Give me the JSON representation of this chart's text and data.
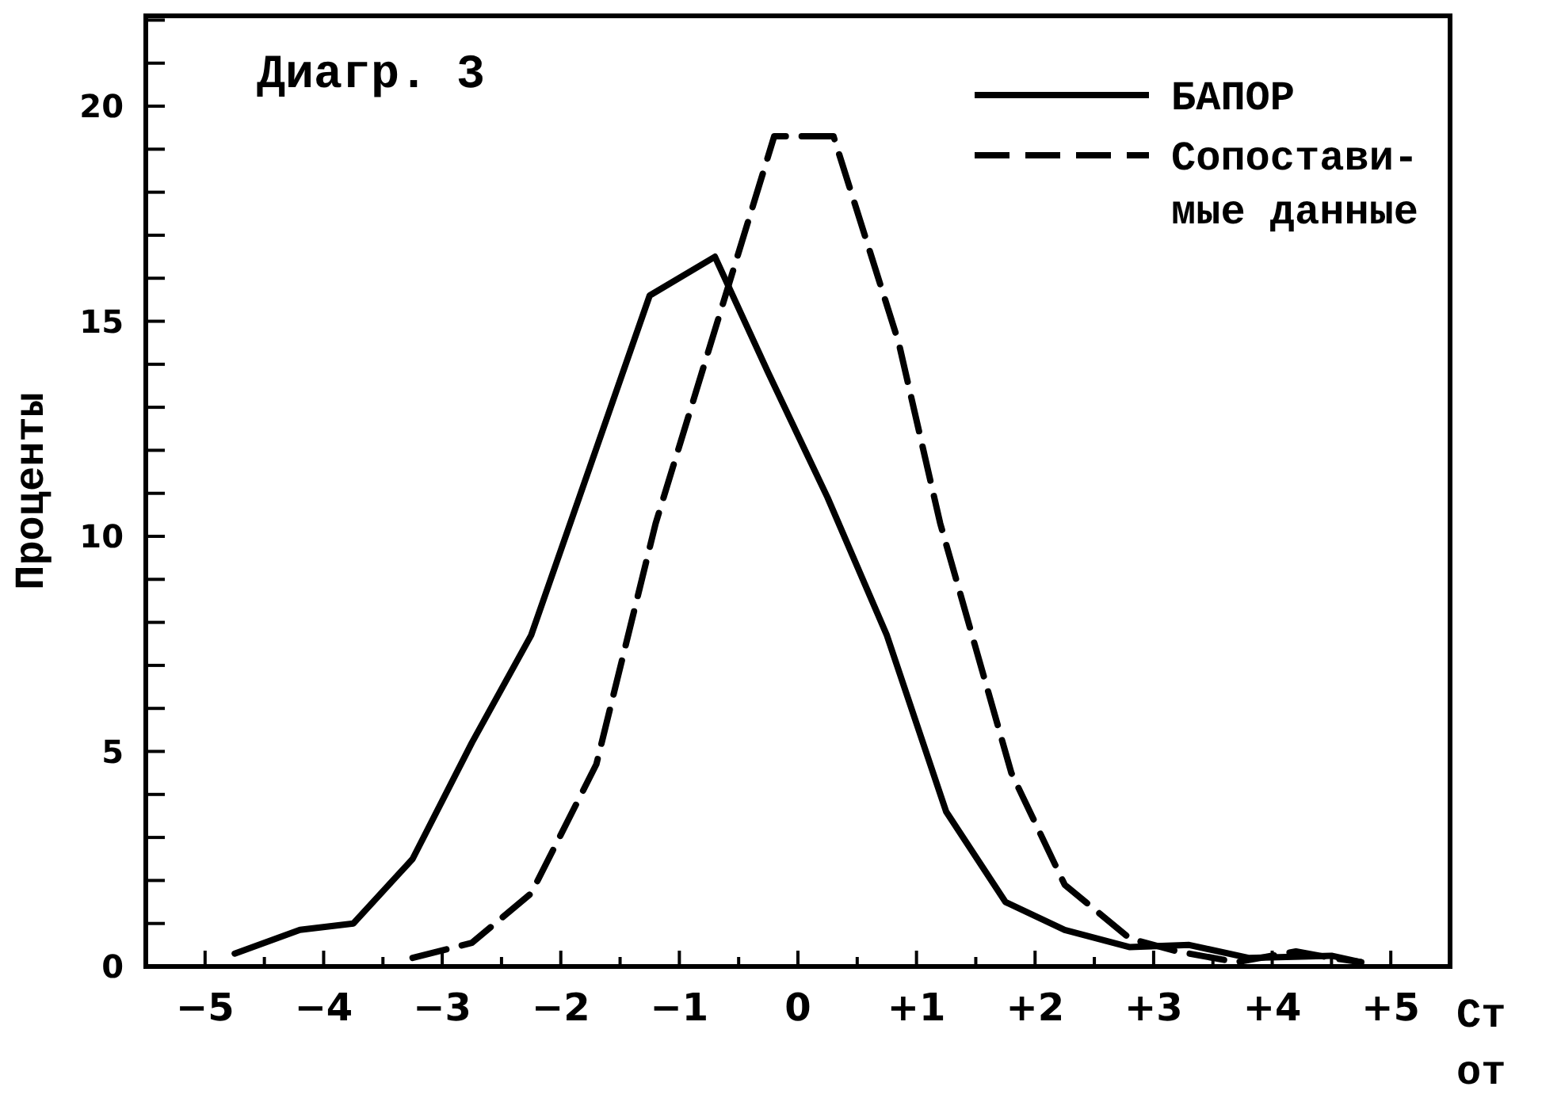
{
  "chart_data": {
    "type": "line",
    "title": "Диагр. 3",
    "ylabel": "Проценты",
    "xlabel": "Ст\nот",
    "xlim": [
      -5.5,
      5.5
    ],
    "ylim": [
      0,
      22.1
    ],
    "xticks": [
      {
        "value": -5,
        "label": "−5"
      },
      {
        "value": -4.5,
        "label": null
      },
      {
        "value": -4,
        "label": "−4"
      },
      {
        "value": -3.5,
        "label": null
      },
      {
        "value": -3,
        "label": "−3"
      },
      {
        "value": -2.5,
        "label": null
      },
      {
        "value": -2,
        "label": "−2"
      },
      {
        "value": -1.5,
        "label": null
      },
      {
        "value": -1,
        "label": "−1"
      },
      {
        "value": -0.5,
        "label": null
      },
      0,
      {
        "value": 0.5,
        "label": null
      },
      {
        "value": 1,
        "label": "+1"
      },
      {
        "value": 1.5,
        "label": null
      },
      {
        "value": 2,
        "label": "+2"
      },
      {
        "value": 2.5,
        "label": null
      },
      {
        "value": 3,
        "label": "+3"
      },
      {
        "value": 3.5,
        "label": null
      },
      {
        "value": 4,
        "label": "+4"
      },
      {
        "value": 4.5,
        "label": null
      },
      {
        "value": 5,
        "label": "+5"
      }
    ],
    "yticks": [
      0,
      {
        "value": 1,
        "label": null
      },
      {
        "value": 2,
        "label": null
      },
      {
        "value": 3,
        "label": null
      },
      {
        "value": 4,
        "label": null
      },
      5,
      {
        "value": 6,
        "label": null
      },
      {
        "value": 7,
        "label": null
      },
      {
        "value": 8,
        "label": null
      },
      {
        "value": 9,
        "label": null
      },
      10,
      {
        "value": 11,
        "label": null
      },
      {
        "value": 12,
        "label": null
      },
      {
        "value": 13,
        "label": null
      },
      {
        "value": 14,
        "label": null
      },
      15,
      {
        "value": 16,
        "label": null
      },
      {
        "value": 17,
        "label": null
      },
      {
        "value": 18,
        "label": null
      },
      {
        "value": 19,
        "label": null
      },
      20,
      {
        "value": 21,
        "label": null
      },
      {
        "value": 22,
        "label": null
      }
    ],
    "legend": "top right",
    "grid": false,
    "marker": "none",
    "series": [
      {
        "name": "БАПОР",
        "color": "#000000",
        "line_style": "solid",
        "x": [
          -4.75,
          -4.2,
          -3.75,
          -3.25,
          -2.75,
          -2.25,
          -1.25,
          -0.7,
          -0.25,
          0.25,
          0.75,
          1.25,
          1.75,
          2.25,
          2.8,
          3.3,
          3.8,
          4.5,
          4.75
        ],
        "values": [
          0.3,
          0.85,
          1.0,
          2.5,
          5.2,
          7.7,
          15.6,
          16.5,
          13.8,
          10.9,
          7.7,
          3.6,
          1.5,
          0.85,
          0.45,
          0.5,
          0.2,
          0.25,
          0.1
        ]
      },
      {
        "name": "Сопостави-\nмые данные",
        "color": "#000000",
        "line_style": "dashed",
        "x": [
          -3.25,
          -2.75,
          -2.25,
          -1.7,
          -1.2,
          -0.2,
          0.3,
          0.85,
          1.2,
          1.8,
          2.25,
          2.8,
          3.2,
          3.7,
          4.2,
          4.5,
          4.75
        ],
        "values": [
          0.2,
          0.55,
          1.7,
          4.7,
          10.3,
          19.3,
          19.3,
          14.5,
          10.3,
          4.5,
          1.9,
          0.65,
          0.35,
          0.1,
          0.35,
          0.2,
          0.1
        ]
      }
    ]
  }
}
